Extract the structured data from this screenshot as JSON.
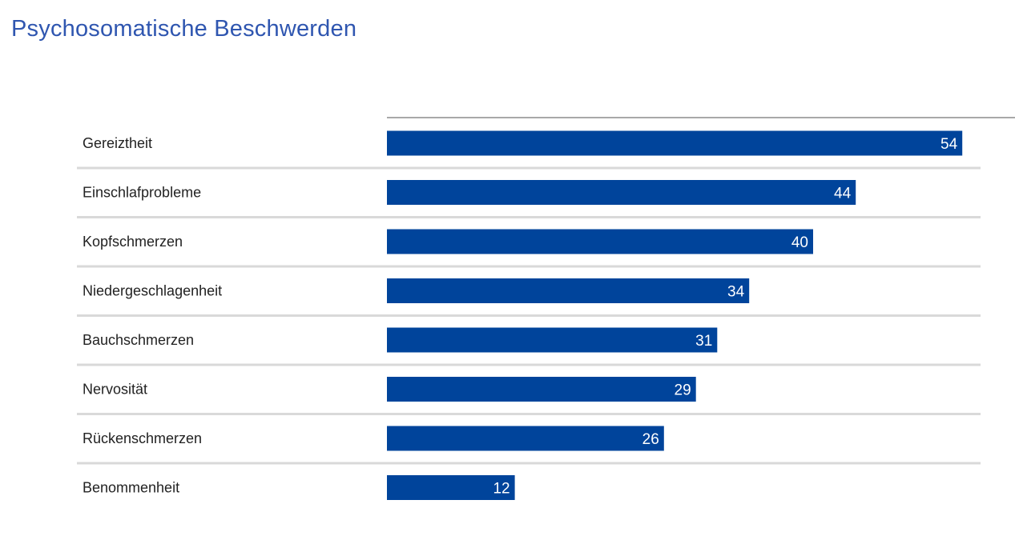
{
  "chart_data": {
    "type": "bar",
    "orientation": "horizontal",
    "title": "Psychosomatische Beschwerden",
    "categories": [
      "Gereiztheit",
      "Einschlafprobleme",
      "Kopfschmerzen",
      "Niedergeschlagenheit",
      "Bauchschmerzen",
      "Nervosität",
      "Rückenschmerzen",
      "Benommenheit"
    ],
    "values": [
      54,
      44,
      40,
      34,
      31,
      29,
      26,
      12
    ],
    "data_labels": [
      "54",
      "44",
      "40",
      "34",
      "31",
      "29",
      "26",
      "12"
    ],
    "xlabel": "",
    "ylabel": "",
    "grid": false,
    "legend": "none",
    "colors": {
      "bar": "#00449b",
      "title": "#2f56b0",
      "label": "#222222",
      "value_label": "#ffffff",
      "separator": "#d9d9d9",
      "axis_line": "#8c8c8c"
    }
  }
}
